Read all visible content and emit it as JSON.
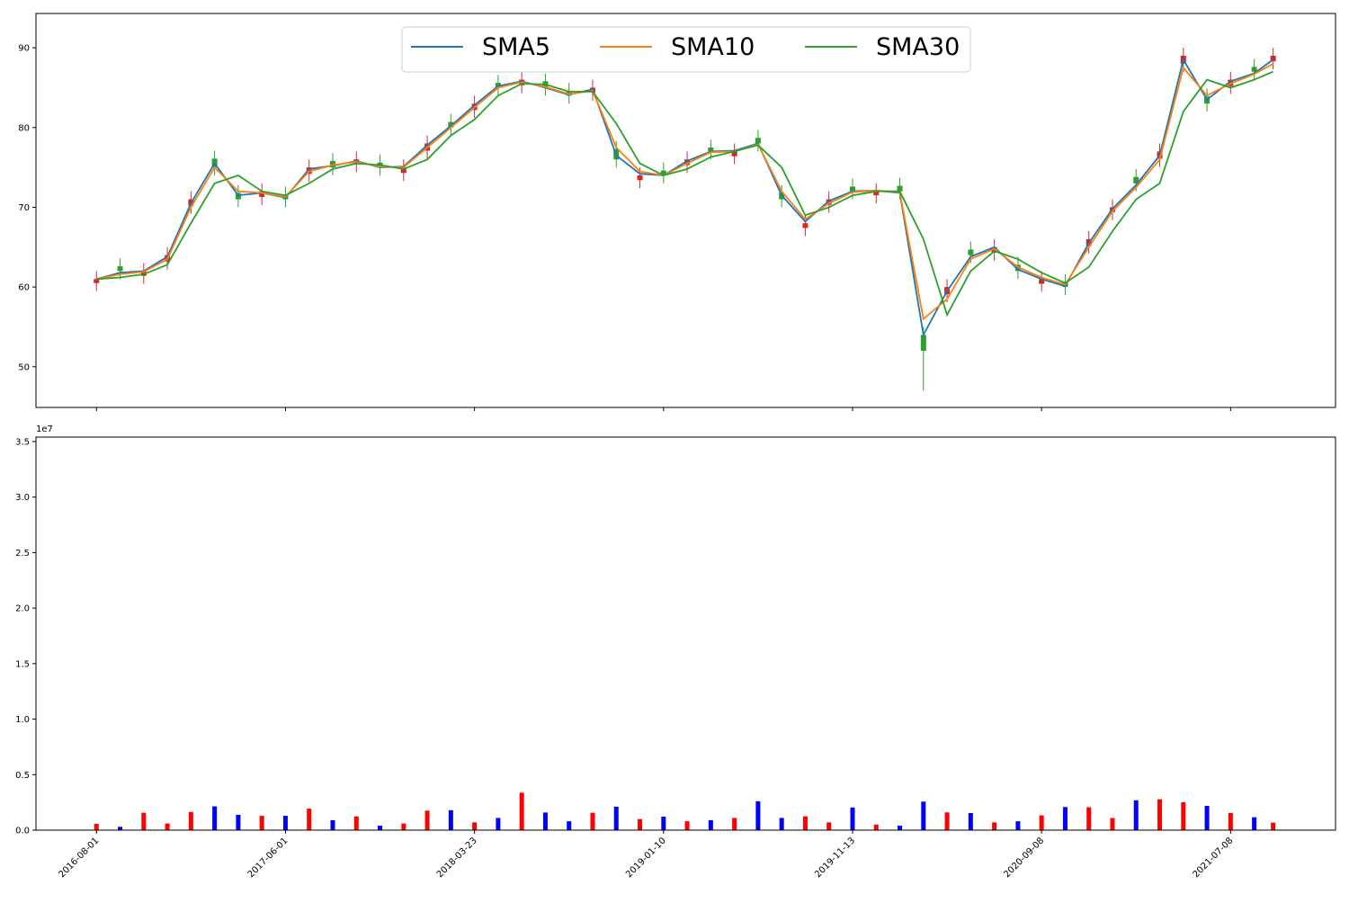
{
  "chart_data": [
    {
      "type": "candlestick",
      "x": [
        0,
        25,
        50,
        75,
        100,
        125,
        150,
        175,
        200,
        225,
        250,
        275,
        300,
        325,
        350,
        375,
        400,
        425,
        450,
        475,
        500,
        525,
        550,
        575,
        600,
        625,
        650,
        675,
        700,
        725,
        750,
        775,
        800,
        825,
        850,
        875,
        900,
        925,
        950,
        975,
        1000,
        1025,
        1050,
        1075,
        1100,
        1125,
        1150,
        1175,
        1200,
        1225,
        1245
      ],
      "open": [
        60.5,
        62.6,
        61.4,
        63.2,
        70.2,
        76.1,
        71.8,
        71.3,
        71.6,
        74.2,
        75.8,
        75.4,
        75.6,
        74.3,
        77.1,
        80.7,
        82.2,
        85.6,
        85.3,
        85.8,
        84.6,
        84.4,
        77.3,
        73.4,
        74.6,
        75.3,
        77.5,
        76.4,
        78.7,
        71.8,
        67.4,
        70.3,
        72.6,
        71.5,
        72.7,
        54.0,
        59.1,
        64.7,
        64.3,
        62.8,
        60.4,
        60.6,
        65.2,
        69.4,
        73.8,
        76.1,
        88.0,
        83.9,
        85.2,
        87.6,
        88.3
      ],
      "high": [
        62.0,
        63.6,
        63.0,
        65.0,
        72.0,
        77.1,
        72.8,
        73.0,
        72.6,
        76.0,
        76.8,
        77.0,
        76.6,
        76.0,
        79.0,
        81.7,
        84.0,
        86.6,
        87.0,
        86.8,
        85.6,
        86.0,
        78.3,
        75.0,
        75.6,
        77.0,
        78.5,
        78.0,
        79.7,
        72.8,
        69.0,
        72.0,
        73.6,
        73.0,
        73.7,
        55.0,
        61.0,
        65.7,
        66.0,
        63.8,
        62.0,
        61.6,
        67.0,
        71.0,
        74.8,
        78.0,
        90.0,
        84.9,
        87.0,
        88.6,
        90.0
      ],
      "low": [
        59.5,
        61.0,
        60.4,
        62.2,
        69.2,
        74.0,
        70.0,
        70.3,
        70.0,
        73.2,
        74.0,
        74.4,
        74.0,
        73.3,
        76.1,
        79.0,
        81.2,
        84.0,
        84.3,
        84.0,
        83.0,
        83.4,
        75.0,
        72.4,
        73.0,
        74.3,
        76.0,
        75.4,
        77.0,
        70.0,
        66.4,
        69.3,
        71.0,
        70.5,
        71.0,
        47.0,
        58.1,
        63.0,
        63.3,
        61.0,
        59.4,
        59.0,
        64.2,
        68.4,
        72.0,
        75.1,
        87.0,
        82.0,
        84.2,
        86.0,
        87.3
      ],
      "close": [
        61,
        62,
        62,
        64,
        71,
        75,
        71,
        72,
        71,
        75,
        75,
        76,
        75,
        75,
        78,
        80,
        83,
        85,
        86,
        85,
        84,
        85,
        76,
        74,
        74,
        76,
        77,
        77,
        78,
        71,
        68,
        71,
        72,
        72,
        72,
        52,
        60,
        64,
        65,
        62,
        61,
        60,
        66,
        70,
        73,
        77,
        89,
        83,
        86,
        87,
        89
      ],
      "up_color": "#d62728",
      "down_color": "#2ca02c",
      "series": [
        {
          "name": "SMA5",
          "color": "#1f77b4",
          "values": [
            61.0,
            61.8,
            62.0,
            63.8,
            70.5,
            75.5,
            71.5,
            71.8,
            71.2,
            74.8,
            75.2,
            75.8,
            75.0,
            75.1,
            77.8,
            80.2,
            82.8,
            85.2,
            85.8,
            85.0,
            84.1,
            84.8,
            76.5,
            74.2,
            74.0,
            75.8,
            77.0,
            77.1,
            78.0,
            71.5,
            68.2,
            70.8,
            72.0,
            72.1,
            71.8,
            54.0,
            59.5,
            63.8,
            65.0,
            62.2,
            61.0,
            60.1,
            65.5,
            69.8,
            72.8,
            76.5,
            88.5,
            83.5,
            85.8,
            86.8,
            88.5
          ]
        },
        {
          "name": "SMA10",
          "color": "#ff7f0e",
          "values": [
            61.0,
            61.6,
            61.9,
            63.5,
            70.0,
            75.0,
            72.0,
            71.8,
            71.3,
            74.5,
            75.3,
            75.7,
            75.1,
            75.0,
            77.5,
            80.0,
            82.5,
            85.0,
            85.7,
            85.1,
            84.2,
            84.6,
            77.5,
            74.5,
            74.0,
            75.5,
            76.9,
            77.0,
            77.9,
            72.0,
            68.5,
            70.5,
            71.9,
            72.1,
            71.9,
            56.0,
            58.5,
            63.5,
            64.8,
            62.5,
            61.2,
            60.3,
            65.0,
            69.5,
            72.5,
            76.0,
            87.5,
            84.0,
            85.5,
            86.7,
            88.0
          ]
        },
        {
          "name": "SMA30",
          "color": "#2ca02c",
          "values": [
            61.0,
            61.2,
            61.6,
            62.8,
            68.0,
            73.0,
            74.0,
            72.0,
            71.5,
            73.0,
            74.8,
            75.5,
            75.3,
            74.8,
            76.0,
            79.0,
            81.0,
            84.0,
            85.5,
            85.4,
            84.5,
            84.5,
            80.5,
            75.5,
            74.0,
            74.8,
            76.3,
            77.0,
            77.8,
            75.0,
            69.0,
            70.0,
            71.5,
            72.0,
            72.0,
            66.0,
            56.5,
            62.0,
            64.5,
            63.5,
            61.8,
            60.5,
            62.5,
            67.0,
            71.0,
            73.0,
            82.0,
            86.0,
            85.0,
            86.0,
            87.0
          ]
        }
      ],
      "xlim": [
        -64,
        1311
      ],
      "ylim": [
        44.9,
        94.3
      ],
      "yticks": [
        50,
        60,
        70,
        80,
        90
      ],
      "legend": "upper center"
    },
    {
      "type": "bar",
      "x": [
        0,
        25,
        50,
        75,
        100,
        125,
        150,
        175,
        200,
        225,
        250,
        275,
        300,
        325,
        350,
        375,
        400,
        425,
        450,
        475,
        500,
        525,
        550,
        575,
        600,
        625,
        650,
        675,
        700,
        725,
        750,
        775,
        800,
        825,
        850,
        875,
        900,
        925,
        950,
        975,
        1000,
        1025,
        1050,
        1075,
        1100,
        1125,
        1150,
        1175,
        1200,
        1225,
        1245
      ],
      "values": [
        0.57,
        0.3,
        1.57,
        0.6,
        1.64,
        2.14,
        1.38,
        1.29,
        1.29,
        1.94,
        0.9,
        1.24,
        0.4,
        0.6,
        1.76,
        1.79,
        0.7,
        1.1,
        3.37,
        1.59,
        0.8,
        1.57,
        2.11,
        1.0,
        1.22,
        0.8,
        0.9,
        1.1,
        2.6,
        1.1,
        1.25,
        0.7,
        2.04,
        0.5,
        0.4,
        2.57,
        1.6,
        1.54,
        0.7,
        0.8,
        1.33,
        2.08,
        2.06,
        1.09,
        2.69,
        2.78,
        2.51,
        2.19,
        1.55,
        1.16,
        0.68
      ],
      "up_color": "red",
      "down_color": "blue",
      "offset_label": "1e7",
      "xlim": [
        -64,
        1311
      ],
      "xticks": [
        {
          "value": 0,
          "label": "2016-08-01"
        },
        {
          "value": 200,
          "label": "2017-06-01"
        },
        {
          "value": 400,
          "label": "2018-03-23"
        },
        {
          "value": 600,
          "label": "2019-01-10"
        },
        {
          "value": 800,
          "label": "2019-11-13"
        },
        {
          "value": 1000,
          "label": "2020-09-08"
        },
        {
          "value": 1200,
          "label": "2021-07-08"
        }
      ],
      "ylim": [
        0,
        35.4
      ],
      "yticks": [
        {
          "value": 0,
          "label": "0.0"
        },
        {
          "value": 5,
          "label": "0.5"
        },
        {
          "value": 10,
          "label": "1.0"
        },
        {
          "value": 15,
          "label": "1.5"
        },
        {
          "value": 20,
          "label": "2.0"
        },
        {
          "value": 25,
          "label": "2.5"
        },
        {
          "value": 30,
          "label": "3.0"
        },
        {
          "value": 35,
          "label": "3.5"
        }
      ]
    }
  ]
}
